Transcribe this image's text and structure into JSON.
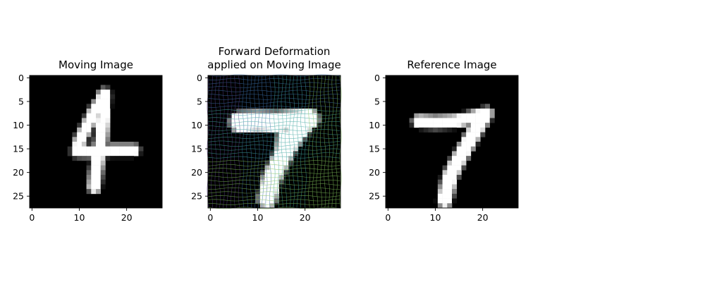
{
  "figure": {
    "panels": [
      {
        "title_lines": [
          "Moving Image"
        ],
        "xticks": [
          0,
          10,
          20
        ],
        "yticks": [
          0,
          5,
          10,
          15,
          20,
          25
        ],
        "grid_overlay": false,
        "strokes": [
          {
            "points": [
              [
                15.3,
                3.5
              ],
              [
                15.1,
                8
              ],
              [
                14.6,
                13
              ],
              [
                14.0,
                16.5
              ],
              [
                13.5,
                20
              ],
              [
                13.2,
                23
              ]
            ],
            "width": 1.4
          },
          {
            "points": [
              [
                14.8,
                4.5
              ],
              [
                13.2,
                7
              ],
              [
                11.5,
                10.5
              ],
              [
                10.2,
                13
              ],
              [
                9.5,
                15.5
              ]
            ],
            "width": 1.3
          },
          {
            "points": [
              [
                9.5,
                15.5
              ],
              [
                13,
                15.6
              ],
              [
                17,
                15.3
              ],
              [
                21.5,
                15.3
              ]
            ],
            "width": 1.3
          }
        ]
      },
      {
        "title_lines": [
          "Forward Deformation",
          "applied on Moving Image"
        ],
        "xticks": [
          0,
          10,
          20
        ],
        "yticks": [
          0,
          5,
          10,
          15,
          20,
          25
        ],
        "grid_overlay": true,
        "grid_colors": [
          "#5a3f8a",
          "#3b6fa8",
          "#3fa6a0",
          "#7fbf5a",
          "#d8c84a"
        ],
        "strokes": [
          {
            "points": [
              [
                6.2,
                9.3
              ],
              [
                10,
                9.1
              ],
              [
                14,
                9.3
              ],
              [
                17,
                9.0
              ],
              [
                20.8,
                8.7
              ]
            ],
            "width": 2.2
          },
          {
            "points": [
              [
                20.5,
                9.0
              ],
              [
                18,
                12
              ],
              [
                16,
                15
              ],
              [
                14.5,
                18
              ],
              [
                13,
                21
              ],
              [
                12,
                25.5
              ]
            ],
            "width": 2.0
          },
          {
            "points": [
              [
                15.5,
                12
              ],
              [
                15.2,
                15
              ],
              [
                14.8,
                17
              ]
            ],
            "width": 1.4
          }
        ]
      },
      {
        "title_lines": [
          "Reference Image"
        ],
        "xticks": [
          0,
          10,
          20
        ],
        "yticks": [
          0,
          5,
          10,
          15,
          20,
          25
        ],
        "grid_overlay": false,
        "strokes": [
          {
            "points": [
              [
                6.5,
                9.2
              ],
              [
                10,
                9.4
              ],
              [
                14,
                9.2
              ],
              [
                17,
                8.6
              ],
              [
                20.8,
                7.5
              ]
            ],
            "width": 1.4
          },
          {
            "points": [
              [
                20.5,
                7.8
              ],
              [
                18.5,
                11
              ],
              [
                16.5,
                14.5
              ],
              [
                14.5,
                18
              ],
              [
                13,
                21
              ],
              [
                12,
                25.8
              ]
            ],
            "width": 1.6
          }
        ]
      }
    ]
  },
  "chart_data": [
    {
      "type": "heatmap",
      "title": "Moving Image",
      "xlabel": "",
      "ylabel": "",
      "xlim": [
        -0.5,
        27.5
      ],
      "ylim": [
        27.5,
        -0.5
      ],
      "xticks": [
        0,
        10,
        20
      ],
      "yticks": [
        0,
        5,
        10,
        15,
        20,
        25
      ],
      "colormap": "gray",
      "content": "28x28 grayscale digit image"
    },
    {
      "type": "heatmap",
      "title": "Forward Deformation\napplied on Moving Image",
      "xlabel": "",
      "ylabel": "",
      "xlim": [
        -0.5,
        27.5
      ],
      "ylim": [
        27.5,
        -0.5
      ],
      "xticks": [
        0,
        10,
        20
      ],
      "yticks": [
        0,
        5,
        10,
        15,
        20,
        25
      ],
      "colormap": "gray",
      "overlay": "deformation grid lines colored purple to yellow"
    },
    {
      "type": "heatmap",
      "title": "Reference Image",
      "xlabel": "",
      "ylabel": "",
      "xlim": [
        -0.5,
        27.5
      ],
      "ylim": [
        27.5,
        -0.5
      ],
      "xticks": [
        0,
        10,
        20
      ],
      "yticks": [
        0,
        5,
        10,
        15,
        20,
        25
      ],
      "colormap": "gray",
      "content": "28x28 grayscale digit image"
    }
  ]
}
